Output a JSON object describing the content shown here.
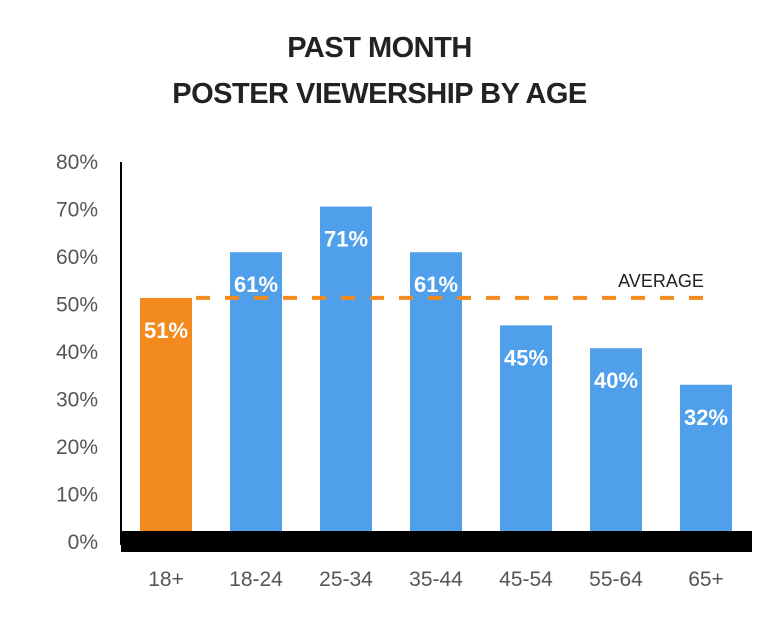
{
  "chart_data": {
    "type": "bar",
    "title": [
      "PAST MONTH",
      "POSTER VIEWERSHIP BY AGE"
    ],
    "categories": [
      "18+",
      "18-24",
      "25-34",
      "35-44",
      "45-54",
      "55-64",
      "65+"
    ],
    "values": [
      51,
      61,
      71,
      61,
      45,
      40,
      32
    ],
    "data_labels": [
      "51%",
      "61%",
      "71%",
      "61%",
      "45%",
      "40%",
      "32%"
    ],
    "bar_colors": [
      "#F28A1E",
      "#4F9FEA",
      "#4F9FEA",
      "#4F9FEA",
      "#4F9FEA",
      "#4F9FEA",
      "#4F9FEA"
    ],
    "ylim": [
      0,
      80
    ],
    "yticks": [
      "0%",
      "10%",
      "20%",
      "30%",
      "40%",
      "50%",
      "60%",
      "70%",
      "80%"
    ],
    "reference_line": {
      "label": "AVERAGE",
      "value": 51,
      "color": "#F28A1E",
      "style": "dashed"
    },
    "grid": false,
    "xlabel": "",
    "ylabel": ""
  }
}
